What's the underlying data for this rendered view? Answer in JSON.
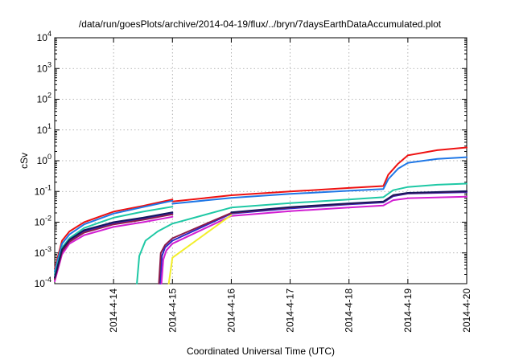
{
  "chart_data": {
    "type": "line",
    "title": "/data/run/goesPlots/archive/2014-04-19/flux/../bryn/7daysEarthDataAccumulated.plot",
    "xlabel": "Coordinated Universal Time (UTC)",
    "ylabel": "cSv",
    "x_scale": "date",
    "y_scale": "log",
    "xlim": [
      "2014-04-13 00:00",
      "2014-04-20 00:00"
    ],
    "ylim": [
      0.0001,
      10000
    ],
    "grid": true,
    "legend": "none",
    "x_tick_labels": [
      "2014-4-14",
      "2014-4-15",
      "2014-4-16",
      "2014-4-17",
      "2014-4-18",
      "2014-4-19",
      "2014-4-20"
    ],
    "y_tick_labels": [
      {
        "base": "10",
        "exp": "-4"
      },
      {
        "base": "10",
        "exp": "-3"
      },
      {
        "base": "10",
        "exp": "-2"
      },
      {
        "base": "10",
        "exp": "-1"
      },
      {
        "base": "10",
        "exp": "0"
      },
      {
        "base": "10",
        "exp": "1"
      },
      {
        "base": "10",
        "exp": "2"
      },
      {
        "base": "10",
        "exp": "3"
      },
      {
        "base": "10",
        "exp": "4"
      }
    ],
    "series": [
      {
        "color": "#ee1111",
        "segments": [
          [
            [
              "2014-04-13 00:00",
              0.0003
            ],
            [
              "2014-04-13 03:00",
              0.0025
            ],
            [
              "2014-04-13 06:00",
              0.005
            ],
            [
              "2014-04-13 12:00",
              0.01
            ],
            [
              "2014-04-14 00:00",
              0.022
            ],
            [
              "2014-04-14 12:00",
              0.034
            ],
            [
              "2014-04-15 00:00",
              0.055
            ]
          ],
          [
            [
              "2014-04-15 00:00",
              0.047
            ],
            [
              "2014-04-16 00:00",
              0.075
            ],
            [
              "2014-04-17 00:00",
              0.1
            ],
            [
              "2014-04-18 00:00",
              0.13
            ],
            [
              "2014-04-18 14:00",
              0.15
            ],
            [
              "2014-04-18 16:00",
              0.35
            ],
            [
              "2014-04-18 20:00",
              0.8
            ],
            [
              "2014-04-19 00:00",
              1.5
            ],
            [
              "2014-04-19 12:00",
              2.2
            ],
            [
              "2014-04-20 00:00",
              2.7
            ]
          ]
        ]
      },
      {
        "color": "#1f77e6",
        "segments": [
          [
            [
              "2014-04-13 00:00",
              0.00025
            ],
            [
              "2014-04-13 03:00",
              0.002
            ],
            [
              "2014-04-13 06:00",
              0.004
            ],
            [
              "2014-04-13 12:00",
              0.0085
            ],
            [
              "2014-04-14 00:00",
              0.019
            ],
            [
              "2014-04-14 12:00",
              0.031
            ],
            [
              "2014-04-15 00:00",
              0.05
            ]
          ],
          [
            [
              "2014-04-15 00:00",
              0.04
            ],
            [
              "2014-04-16 00:00",
              0.062
            ],
            [
              "2014-04-17 00:00",
              0.083
            ],
            [
              "2014-04-18 00:00",
              0.105
            ],
            [
              "2014-04-18 14:00",
              0.12
            ],
            [
              "2014-04-18 16:00",
              0.25
            ],
            [
              "2014-04-18 20:00",
              0.55
            ],
            [
              "2014-04-19 00:00",
              0.85
            ],
            [
              "2014-04-19 12:00",
              1.15
            ],
            [
              "2014-04-20 00:00",
              1.3
            ]
          ]
        ]
      },
      {
        "color": "#1ec8a5",
        "segments": [
          [
            [
              "2014-04-13 00:00",
              0.0002
            ],
            [
              "2014-04-13 03:00",
              0.0015
            ],
            [
              "2014-04-13 06:00",
              0.003
            ],
            [
              "2014-04-13 12:00",
              0.0065
            ],
            [
              "2014-04-14 00:00",
              0.014
            ],
            [
              "2014-04-14 12:00",
              0.022
            ],
            [
              "2014-04-15 00:00",
              0.032
            ]
          ],
          [
            [
              "2014-04-14 09:30",
              0.0001
            ],
            [
              "2014-04-14 10:30",
              0.0008
            ],
            [
              "2014-04-14 13:00",
              0.0025
            ],
            [
              "2014-04-14 18:00",
              0.005
            ],
            [
              "2014-04-15 00:00",
              0.009
            ],
            [
              "2014-04-16 00:00",
              0.03
            ],
            [
              "2014-04-17 00:00",
              0.042
            ],
            [
              "2014-04-18 00:00",
              0.055
            ],
            [
              "2014-04-18 14:00",
              0.065
            ],
            [
              "2014-04-18 18:00",
              0.11
            ],
            [
              "2014-04-19 00:00",
              0.14
            ],
            [
              "2014-04-19 12:00",
              0.165
            ],
            [
              "2014-04-20 00:00",
              0.18
            ]
          ]
        ]
      },
      {
        "color": "#2a28c8",
        "segments": [
          [
            [
              "2014-04-13 00:00",
              0.00015
            ],
            [
              "2014-04-13 03:00",
              0.0012
            ],
            [
              "2014-04-13 06:00",
              0.0025
            ],
            [
              "2014-04-13 12:00",
              0.005
            ],
            [
              "2014-04-14 00:00",
              0.009
            ],
            [
              "2014-04-14 12:00",
              0.013
            ],
            [
              "2014-04-15 00:00",
              0.019
            ]
          ],
          [
            [
              "2014-04-14 19:00",
              0.0001
            ],
            [
              "2014-04-14 19:45",
              0.0008
            ],
            [
              "2014-04-14 21:00",
              0.0015
            ],
            [
              "2014-04-15 00:00",
              0.0025
            ],
            [
              "2014-04-16 00:00",
              0.019
            ],
            [
              "2014-04-17 00:00",
              0.028
            ],
            [
              "2014-04-18 00:00",
              0.038
            ],
            [
              "2014-04-18 14:00",
              0.044
            ],
            [
              "2014-04-18 18:00",
              0.07
            ],
            [
              "2014-04-19 00:00",
              0.085
            ],
            [
              "2014-04-20 00:00",
              0.095
            ]
          ]
        ]
      },
      {
        "color": "#d21ed2",
        "segments": [
          [
            [
              "2014-04-13 00:00",
              0.00012
            ],
            [
              "2014-04-13 03:00",
              0.0009
            ],
            [
              "2014-04-13 06:00",
              0.002
            ],
            [
              "2014-04-13 12:00",
              0.0038
            ],
            [
              "2014-04-14 00:00",
              0.007
            ],
            [
              "2014-04-14 12:00",
              0.01
            ],
            [
              "2014-04-15 00:00",
              0.015
            ]
          ],
          [
            [
              "2014-04-14 19:30",
              0.0001
            ],
            [
              "2014-04-14 20:15",
              0.0006
            ],
            [
              "2014-04-14 21:30",
              0.0012
            ],
            [
              "2014-04-15 00:00",
              0.002
            ],
            [
              "2014-04-16 00:00",
              0.016
            ],
            [
              "2014-04-17 00:00",
              0.023
            ],
            [
              "2014-04-18 00:00",
              0.03
            ],
            [
              "2014-04-18 14:00",
              0.035
            ],
            [
              "2014-04-18 18:00",
              0.052
            ],
            [
              "2014-04-19 00:00",
              0.06
            ],
            [
              "2014-04-20 00:00",
              0.068
            ]
          ]
        ]
      },
      {
        "color": "#f2ee2a",
        "segments": [
          [
            [
              "2014-04-14 22:30",
              0.0001
            ],
            [
              "2014-04-15 00:00",
              0.0007
            ],
            [
              "2014-04-16 00:00",
              0.017
            ]
          ]
        ]
      },
      {
        "color": "#8b1a4a",
        "segments": [
          [
            [
              "2014-04-13 00:00",
              0.00014
            ],
            [
              "2014-04-13 03:00",
              0.0011
            ],
            [
              "2014-04-13 06:00",
              0.0023
            ],
            [
              "2014-04-13 12:00",
              0.0046
            ],
            [
              "2014-04-14 00:00",
              0.0085
            ],
            [
              "2014-04-14 12:00",
              0.012
            ],
            [
              "2014-04-15 00:00",
              0.018
            ]
          ],
          [
            [
              "2014-04-14 18:30",
              0.0001
            ],
            [
              "2014-04-14 19:15",
              0.001
            ],
            [
              "2014-04-14 21:00",
              0.0018
            ],
            [
              "2014-04-15 00:00",
              0.003
            ],
            [
              "2014-04-16 00:00",
              0.02
            ],
            [
              "2014-04-17 00:00",
              0.03
            ],
            [
              "2014-04-18 00:00",
              0.04
            ],
            [
              "2014-04-18 14:00",
              0.046
            ],
            [
              "2014-04-18 18:00",
              0.074
            ],
            [
              "2014-04-19 00:00",
              0.088
            ],
            [
              "2014-04-20 00:00",
              0.1
            ]
          ]
        ]
      },
      {
        "color": "#16165e",
        "segments": [
          [
            [
              "2014-04-13 00:00",
              0.00016
            ],
            [
              "2014-04-13 03:00",
              0.0013
            ],
            [
              "2014-04-13 06:00",
              0.0027
            ],
            [
              "2014-04-13 12:00",
              0.0055
            ],
            [
              "2014-04-14 00:00",
              0.01
            ],
            [
              "2014-04-14 12:00",
              0.014
            ],
            [
              "2014-04-15 00:00",
              0.021
            ]
          ],
          [
            [
              "2014-04-16 00:00",
              0.021
            ],
            [
              "2014-04-17 00:00",
              0.031
            ],
            [
              "2014-04-18 00:00",
              0.041
            ],
            [
              "2014-04-18 14:00",
              0.047
            ],
            [
              "2014-04-18 18:00",
              0.076
            ],
            [
              "2014-04-19 00:00",
              0.09
            ],
            [
              "2014-04-20 00:00",
              0.102
            ]
          ]
        ]
      }
    ]
  }
}
